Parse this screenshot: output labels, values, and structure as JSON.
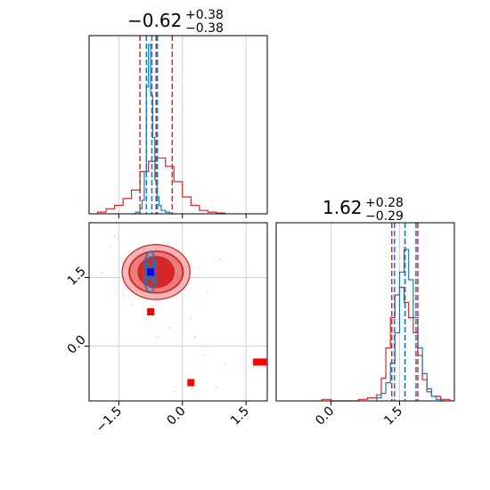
{
  "chart_data": [
    {
      "panel": "marginal-x",
      "type": "histogram",
      "title": {
        "value": "−0.62",
        "upper": "+0.38",
        "lower": "−0.38"
      },
      "xlim": [
        -2.2,
        2.0
      ],
      "series": [
        {
          "name": "",
          "color": "#d62728",
          "bins": [
            -2.0,
            -1.8,
            -1.6,
            -1.4,
            -1.2,
            -1.0,
            -0.8,
            -0.6,
            -0.4,
            -0.2,
            0.0,
            0.2,
            0.4,
            0.6,
            0.8,
            1.0
          ],
          "counts": [
            0.01,
            0.03,
            0.05,
            0.09,
            0.14,
            0.25,
            0.31,
            0.33,
            0.28,
            0.19,
            0.1,
            0.05,
            0.02,
            0.01,
            0.005
          ]
        },
        {
          "name": "",
          "color": "#1f77b4",
          "bins": [
            -1.2,
            -1.1,
            -1.0,
            -0.95,
            -0.9,
            -0.85,
            -0.8,
            -0.75,
            -0.7,
            -0.65,
            -0.6,
            -0.55,
            -0.5,
            -0.4,
            -0.3,
            -0.2
          ],
          "counts": [
            0.0,
            0.01,
            0.03,
            0.08,
            0.25,
            0.75,
            1.0,
            0.7,
            0.45,
            0.2,
            0.1,
            0.05,
            0.02,
            0.01,
            0.0
          ]
        }
      ],
      "vlines_red": [
        -1.0,
        -0.62,
        -0.24
      ],
      "vlines_blue": [
        -0.85,
        -0.72,
        -0.59
      ],
      "x_ticks": [
        -1.5,
        0.0,
        1.5
      ]
    },
    {
      "panel": "joint",
      "type": "contour",
      "xlim": [
        -2.2,
        2.0
      ],
      "ylim": [
        -1.2,
        2.7
      ],
      "x_ticks": [
        -1.5,
        0.0,
        1.5
      ],
      "x_tick_labels": [
        "−1.5",
        "0.0",
        "1.5"
      ],
      "y_ticks": [
        0.0,
        1.5
      ],
      "y_tick_labels": [
        "0.0",
        "1.5"
      ],
      "contours_red": [
        {
          "cx": -0.62,
          "cy": 1.62,
          "rx": 1.6,
          "ry": 0.6,
          "color": "#f4b7b7"
        },
        {
          "cx": -0.62,
          "cy": 1.62,
          "rx": 1.28,
          "ry": 0.46,
          "color": "#e97c7c"
        },
        {
          "cx": -0.62,
          "cy": 1.62,
          "rx": 1.25,
          "ry": 0.45,
          "color": "#e97c7c"
        },
        {
          "cx": -0.62,
          "cy": 1.62,
          "rx": 0.85,
          "ry": 0.34,
          "color": "#d62728"
        }
      ],
      "contours_blue": [
        {
          "cx": -0.76,
          "cy": 1.62,
          "rx": 0.28,
          "ry": 0.45
        },
        {
          "cx": -0.76,
          "cy": 1.62,
          "rx": 0.18,
          "ry": 0.33
        },
        {
          "cx": -0.76,
          "cy": 1.62,
          "rx": 0.08,
          "ry": 0.18
        }
      ],
      "markers_red": [
        [
          -0.75,
          0.75
        ],
        [
          0.2,
          -0.8
        ],
        [
          1.75,
          -0.35
        ]
      ],
      "markers_blue": [
        [
          -0.75,
          1.62
        ]
      ],
      "scatter": [
        [
          -1.7,
          2.2
        ],
        [
          -1.4,
          1.1
        ],
        [
          -1.9,
          1.6
        ],
        [
          -0.1,
          2.3
        ],
        [
          0.4,
          1.7
        ],
        [
          0.6,
          1.2
        ],
        [
          -1.2,
          0.9
        ],
        [
          0.2,
          0.6
        ],
        [
          -0.6,
          0.2
        ],
        [
          0.5,
          -0.2
        ],
        [
          1.0,
          -0.4
        ],
        [
          0.8,
          -0.9
        ],
        [
          -0.2,
          -1.0
        ],
        [
          0.3,
          0.2
        ],
        [
          -1.6,
          2.4
        ],
        [
          0.9,
          1.9
        ],
        [
          -0.3,
          0.4
        ],
        [
          0.7,
          0.0
        ]
      ]
    },
    {
      "panel": "marginal-y",
      "type": "histogram",
      "title": {
        "value": "1.62",
        "upper": "+0.28",
        "lower": "−0.29"
      },
      "xlim": [
        -1.2,
        2.7
      ],
      "x_ticks": [
        0.0,
        1.5
      ],
      "x_tick_labels": [
        "0.0",
        "1.5"
      ],
      "series": [
        {
          "name": "",
          "color": "#d62728",
          "bins": [
            -0.2,
            0.0,
            0.2,
            0.4,
            0.6,
            0.8,
            1.0,
            1.1,
            1.2,
            1.3,
            1.4,
            1.5,
            1.6,
            1.7,
            1.8,
            1.9,
            2.0,
            2.1,
            2.2,
            2.4,
            2.6
          ],
          "counts": [
            0.01,
            0.0,
            0.0,
            0.0,
            0.01,
            0.02,
            0.04,
            0.15,
            0.35,
            0.55,
            0.7,
            0.75,
            0.65,
            0.55,
            0.45,
            0.3,
            0.14,
            0.06,
            0.03,
            0.01
          ]
        },
        {
          "name": "",
          "color": "#1f77b4",
          "bins": [
            1.0,
            1.1,
            1.2,
            1.3,
            1.4,
            1.5,
            1.6,
            1.7,
            1.8,
            1.9,
            2.0,
            2.1,
            2.2,
            2.3,
            2.4,
            2.5
          ],
          "counts": [
            0.02,
            0.05,
            0.12,
            0.25,
            0.45,
            0.85,
            1.0,
            0.8,
            0.55,
            0.35,
            0.18,
            0.08,
            0.03,
            0.01,
            0.0
          ]
        }
      ],
      "vlines_red": [
        1.33,
        1.62,
        1.9
      ],
      "vlines_blue": [
        1.39,
        1.62,
        1.86
      ]
    }
  ]
}
